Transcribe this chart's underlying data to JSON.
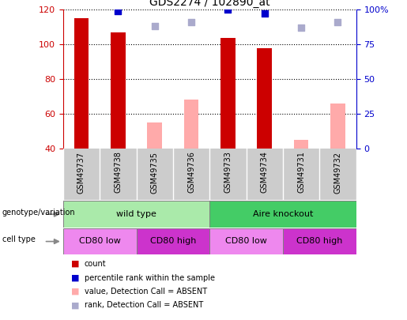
{
  "title": "GDS2274 / 102890_at",
  "samples": [
    "GSM49737",
    "GSM49738",
    "GSM49735",
    "GSM49736",
    "GSM49733",
    "GSM49734",
    "GSM49731",
    "GSM49732"
  ],
  "count_values": [
    115,
    107,
    null,
    null,
    103.5,
    98,
    null,
    null
  ],
  "count_absent_values": [
    null,
    null,
    55,
    68.5,
    null,
    null,
    45,
    66
  ],
  "percentile_rank_values": [
    null,
    99,
    null,
    null,
    100,
    97,
    null,
    null
  ],
  "percentile_rank_absent_values": [
    null,
    null,
    88,
    91,
    null,
    null,
    87,
    91
  ],
  "ylim_left": [
    40,
    120
  ],
  "ylim_right": [
    0,
    100
  ],
  "left_ticks": [
    40,
    60,
    80,
    100,
    120
  ],
  "right_ticks": [
    0,
    25,
    50,
    75,
    100
  ],
  "right_tick_labels": [
    "0",
    "25",
    "50",
    "75",
    "100%"
  ],
  "bar_color_count": "#cc0000",
  "bar_color_absent": "#ffaaaa",
  "dot_color_rank": "#0000cc",
  "dot_color_rank_absent": "#aaaacc",
  "left_axis_color": "#cc0000",
  "right_axis_color": "#0000cc",
  "genotype_groups": [
    {
      "label": "wild type",
      "start": 0,
      "end": 4,
      "color": "#aaeaaa"
    },
    {
      "label": "Aire knockout",
      "start": 4,
      "end": 8,
      "color": "#44cc66"
    }
  ],
  "cell_type_groups": [
    {
      "label": "CD80 low",
      "start": 0,
      "end": 2,
      "color": "#ee88ee"
    },
    {
      "label": "CD80 high",
      "start": 2,
      "end": 4,
      "color": "#cc33cc"
    },
    {
      "label": "CD80 low",
      "start": 4,
      "end": 6,
      "color": "#ee88ee"
    },
    {
      "label": "CD80 high",
      "start": 6,
      "end": 8,
      "color": "#cc33cc"
    }
  ],
  "legend_items": [
    {
      "label": "count",
      "color": "#cc0000"
    },
    {
      "label": "percentile rank within the sample",
      "color": "#0000cc"
    },
    {
      "label": "value, Detection Call = ABSENT",
      "color": "#ffaaaa"
    },
    {
      "label": "rank, Detection Call = ABSENT",
      "color": "#aaaacc"
    }
  ],
  "bar_width": 0.4,
  "dot_size": 30,
  "sample_bg_color": "#cccccc",
  "arrow_color": "#888888"
}
